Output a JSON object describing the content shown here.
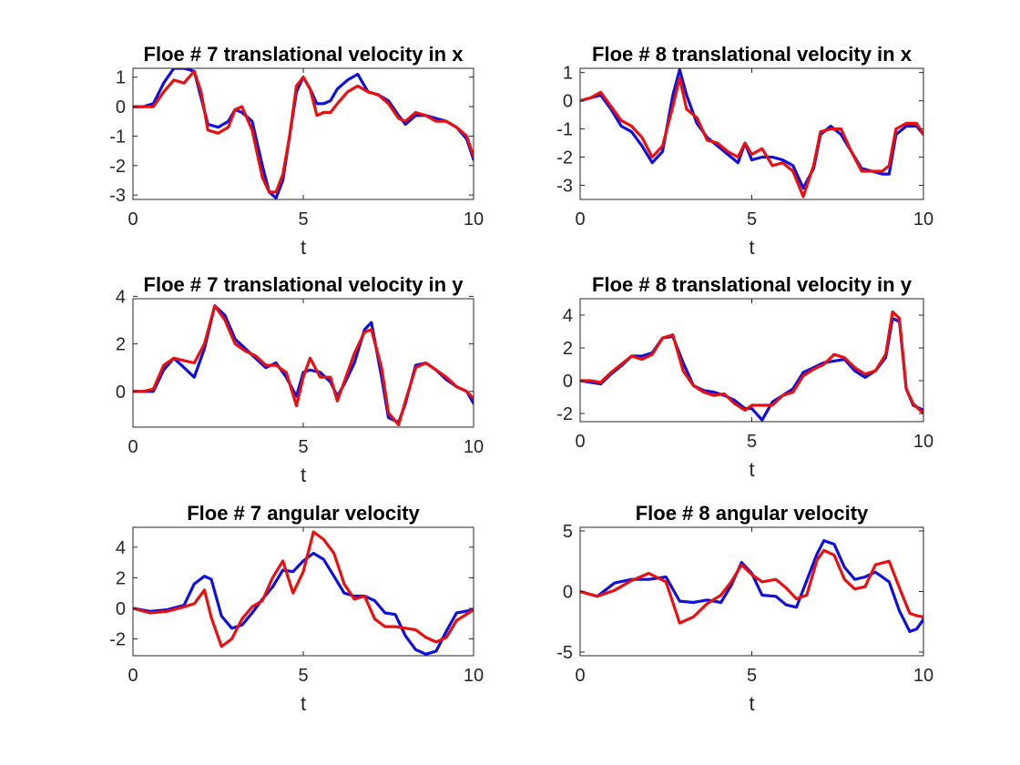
{
  "figure": {
    "colors": {
      "series_1": "#1010d8",
      "series_2": "#e81010",
      "axes": "#262626"
    }
  },
  "chart_data": [
    {
      "type": "line",
      "title": "Floe # 7 translational velocity in x",
      "xlabel": "t",
      "ylabel": "",
      "xlim": [
        0,
        10
      ],
      "ylim": [
        -3.15,
        1.3
      ],
      "xticks": [
        0,
        5,
        10
      ],
      "yticks": [
        -3,
        -2,
        -1,
        0,
        1
      ],
      "grid": false,
      "series": [
        {
          "color": "#1010d8",
          "x": [
            0,
            0.3,
            0.6,
            0.9,
            1.2,
            1.5,
            1.8,
            2.0,
            2.2,
            2.5,
            2.8,
            3.0,
            3.2,
            3.5,
            3.8,
            4.0,
            4.2,
            4.4,
            4.6,
            4.8,
            5.0,
            5.2,
            5.4,
            5.6,
            5.8,
            6.0,
            6.3,
            6.6,
            6.9,
            7.2,
            7.5,
            7.8,
            8.0,
            8.3,
            8.6,
            8.9,
            9.2,
            9.5,
            9.8,
            10.0
          ],
          "y": [
            0,
            0,
            0.1,
            0.8,
            1.3,
            1.3,
            1.2,
            0.3,
            -0.6,
            -0.7,
            -0.5,
            -0.1,
            -0.2,
            -0.5,
            -2.0,
            -2.9,
            -3.1,
            -2.5,
            -1.0,
            0.5,
            1.0,
            0.6,
            0.1,
            0.1,
            0.2,
            0.6,
            0.9,
            1.1,
            0.5,
            0.4,
            0.2,
            -0.3,
            -0.6,
            -0.3,
            -0.3,
            -0.4,
            -0.5,
            -0.7,
            -1.1,
            -1.8
          ]
        },
        {
          "color": "#e81010",
          "x": [
            0,
            0.3,
            0.6,
            0.9,
            1.2,
            1.5,
            1.8,
            2.0,
            2.2,
            2.5,
            2.8,
            3.0,
            3.2,
            3.5,
            3.8,
            4.0,
            4.2,
            4.4,
            4.6,
            4.8,
            5.0,
            5.2,
            5.4,
            5.6,
            5.8,
            6.0,
            6.3,
            6.6,
            6.9,
            7.2,
            7.5,
            7.8,
            8.0,
            8.3,
            8.6,
            8.9,
            9.2,
            9.5,
            9.8,
            10.0
          ],
          "y": [
            0,
            0,
            0,
            0.5,
            0.9,
            0.8,
            1.2,
            0.5,
            -0.8,
            -0.9,
            -0.7,
            -0.1,
            0,
            -0.8,
            -2.4,
            -2.9,
            -2.9,
            -2.3,
            -1.0,
            0.7,
            1.0,
            0.6,
            -0.3,
            -0.2,
            -0.2,
            0.1,
            0.5,
            0.7,
            0.5,
            0.4,
            0.1,
            -0.4,
            -0.5,
            -0.2,
            -0.3,
            -0.5,
            -0.5,
            -0.7,
            -1.0,
            -1.7
          ]
        }
      ]
    },
    {
      "type": "line",
      "title": "Floe # 8 translational velocity in x",
      "xlabel": "t",
      "ylabel": "",
      "xlim": [
        0,
        10
      ],
      "ylim": [
        -3.5,
        1.15
      ],
      "xticks": [
        0,
        5,
        10
      ],
      "yticks": [
        -3,
        -2,
        -1,
        0,
        1
      ],
      "grid": false,
      "series": [
        {
          "color": "#1010d8",
          "x": [
            0,
            0.3,
            0.6,
            0.9,
            1.2,
            1.5,
            1.8,
            2.1,
            2.4,
            2.7,
            2.9,
            3.1,
            3.4,
            3.7,
            4.0,
            4.3,
            4.6,
            4.8,
            5.0,
            5.3,
            5.6,
            5.9,
            6.2,
            6.5,
            6.8,
            7.0,
            7.3,
            7.6,
            7.9,
            8.2,
            8.5,
            8.8,
            9.0,
            9.2,
            9.5,
            9.8,
            10.0
          ],
          "y": [
            0,
            0.1,
            0.2,
            -0.3,
            -0.9,
            -1.1,
            -1.6,
            -2.2,
            -1.8,
            0.2,
            1.1,
            0.2,
            -0.8,
            -1.3,
            -1.6,
            -1.9,
            -2.2,
            -1.5,
            -2.1,
            -2.0,
            -2.0,
            -2.1,
            -2.3,
            -3.1,
            -2.4,
            -1.2,
            -0.9,
            -1.2,
            -1.8,
            -2.4,
            -2.5,
            -2.6,
            -2.6,
            -1.2,
            -0.9,
            -0.9,
            -1.2
          ]
        },
        {
          "color": "#e81010",
          "x": [
            0,
            0.3,
            0.6,
            0.9,
            1.2,
            1.5,
            1.8,
            2.1,
            2.4,
            2.7,
            2.9,
            3.1,
            3.4,
            3.7,
            4.0,
            4.3,
            4.6,
            4.8,
            5.0,
            5.3,
            5.6,
            5.9,
            6.2,
            6.5,
            6.8,
            7.0,
            7.3,
            7.6,
            7.9,
            8.2,
            8.5,
            8.8,
            9.0,
            9.2,
            9.5,
            9.8,
            10.0
          ],
          "y": [
            0,
            0.1,
            0.3,
            -0.2,
            -0.7,
            -0.9,
            -1.3,
            -2.0,
            -1.6,
            -0.2,
            0.8,
            -0.3,
            -0.6,
            -1.4,
            -1.5,
            -1.8,
            -2.0,
            -1.5,
            -1.9,
            -1.7,
            -2.3,
            -2.2,
            -2.5,
            -3.4,
            -2.3,
            -1.1,
            -1.0,
            -1.0,
            -1.8,
            -2.5,
            -2.5,
            -2.5,
            -2.3,
            -1.0,
            -0.8,
            -0.8,
            -1.2
          ]
        }
      ]
    },
    {
      "type": "line",
      "title": "Floe # 7 translational velocity in y",
      "xlabel": "t",
      "ylabel": "",
      "xlim": [
        0,
        10
      ],
      "ylim": [
        -1.5,
        3.9
      ],
      "xticks": [
        0,
        5,
        10
      ],
      "yticks": [
        0,
        2,
        4
      ],
      "grid": false,
      "series": [
        {
          "color": "#1010d8",
          "x": [
            0,
            0.3,
            0.6,
            0.9,
            1.2,
            1.5,
            1.8,
            2.1,
            2.4,
            2.7,
            3.0,
            3.3,
            3.6,
            3.9,
            4.2,
            4.5,
            4.8,
            5.0,
            5.2,
            5.5,
            5.8,
            6.0,
            6.2,
            6.5,
            6.8,
            7.0,
            7.3,
            7.5,
            7.8,
            8.0,
            8.3,
            8.6,
            8.9,
            9.2,
            9.5,
            9.8,
            10.0
          ],
          "y": [
            0,
            0,
            0,
            0.9,
            1.4,
            1.0,
            0.6,
            1.8,
            3.6,
            3.2,
            2.2,
            1.8,
            1.4,
            1.0,
            1.2,
            0.6,
            -0.2,
            0.8,
            0.9,
            0.8,
            0.4,
            -0.2,
            0.3,
            1.2,
            2.6,
            2.9,
            0.6,
            -1.1,
            -1.3,
            -0.5,
            1.1,
            1.2,
            0.9,
            0.5,
            0.2,
            0,
            -0.5
          ]
        },
        {
          "color": "#e81010",
          "x": [
            0,
            0.3,
            0.6,
            0.9,
            1.2,
            1.5,
            1.8,
            2.1,
            2.4,
            2.7,
            3.0,
            3.3,
            3.6,
            3.9,
            4.2,
            4.5,
            4.8,
            5.0,
            5.2,
            5.5,
            5.8,
            6.0,
            6.2,
            6.5,
            6.8,
            7.0,
            7.3,
            7.5,
            7.8,
            8.0,
            8.3,
            8.6,
            8.9,
            9.2,
            9.5,
            9.8,
            10.0
          ],
          "y": [
            0,
            0,
            0.1,
            1.1,
            1.4,
            1.3,
            1.2,
            2.0,
            3.6,
            3.0,
            2.0,
            1.7,
            1.5,
            1.1,
            1.1,
            0.8,
            -0.6,
            0.6,
            1.4,
            0.6,
            0.6,
            -0.4,
            0.4,
            1.6,
            2.5,
            2.6,
            1.0,
            -0.9,
            -1.4,
            -0.4,
            1.0,
            1.2,
            0.9,
            0.6,
            0.2,
            0,
            -0.3
          ]
        }
      ]
    },
    {
      "type": "line",
      "title": "Floe # 8 translational velocity in y",
      "xlabel": "t",
      "ylabel": "",
      "xlim": [
        0,
        10
      ],
      "ylim": [
        -2.5,
        5.0
      ],
      "xticks": [
        0,
        5,
        10
      ],
      "yticks": [
        -2,
        0,
        2,
        4
      ],
      "grid": false,
      "series": [
        {
          "color": "#1010d8",
          "x": [
            0,
            0.3,
            0.6,
            0.9,
            1.2,
            1.5,
            1.8,
            2.1,
            2.4,
            2.7,
            3.0,
            3.3,
            3.6,
            3.9,
            4.2,
            4.5,
            4.8,
            5.0,
            5.3,
            5.6,
            5.9,
            6.2,
            6.5,
            6.8,
            7.1,
            7.4,
            7.7,
            8.0,
            8.3,
            8.6,
            8.9,
            9.1,
            9.3,
            9.5,
            9.7,
            10.0
          ],
          "y": [
            0,
            -0.1,
            -0.2,
            0.4,
            0.9,
            1.5,
            1.5,
            1.7,
            2.6,
            2.7,
            1.1,
            -0.3,
            -0.6,
            -0.7,
            -0.9,
            -1.2,
            -1.7,
            -1.7,
            -2.4,
            -1.3,
            -0.9,
            -0.5,
            0.5,
            0.8,
            1.1,
            1.2,
            1.3,
            0.6,
            0.2,
            0.6,
            1.4,
            3.8,
            3.6,
            -0.5,
            -1.5,
            -1.8
          ]
        },
        {
          "color": "#e81010",
          "x": [
            0,
            0.3,
            0.6,
            0.9,
            1.2,
            1.5,
            1.8,
            2.1,
            2.4,
            2.7,
            3.0,
            3.3,
            3.6,
            3.9,
            4.2,
            4.5,
            4.8,
            5.0,
            5.3,
            5.6,
            5.9,
            6.2,
            6.5,
            6.8,
            7.1,
            7.4,
            7.7,
            8.0,
            8.3,
            8.6,
            8.9,
            9.1,
            9.3,
            9.5,
            9.7,
            10.0
          ],
          "y": [
            0,
            0,
            -0.1,
            0.5,
            1.0,
            1.5,
            1.3,
            1.6,
            2.6,
            2.8,
            0.6,
            -0.3,
            -0.7,
            -0.9,
            -0.8,
            -1.4,
            -1.8,
            -1.5,
            -1.5,
            -1.5,
            -0.9,
            -0.7,
            0.3,
            0.7,
            1.0,
            1.6,
            1.4,
            0.8,
            0.4,
            0.6,
            1.6,
            4.2,
            3.8,
            -0.5,
            -1.4,
            -2.0
          ]
        }
      ]
    },
    {
      "type": "line",
      "title": "Floe # 7 angular velocity",
      "xlabel": "t",
      "ylabel": "",
      "xlim": [
        0,
        10
      ],
      "ylim": [
        -3.1,
        5.3
      ],
      "xticks": [
        0,
        5,
        10
      ],
      "yticks": [
        -2,
        0,
        2,
        4
      ],
      "grid": false,
      "series": [
        {
          "color": "#1010d8",
          "x": [
            0,
            0.5,
            1.0,
            1.5,
            1.8,
            2.1,
            2.3,
            2.6,
            2.9,
            3.2,
            3.5,
            3.8,
            4.1,
            4.4,
            4.7,
            5.0,
            5.3,
            5.6,
            5.9,
            6.2,
            6.5,
            6.8,
            7.1,
            7.4,
            7.7,
            8.0,
            8.3,
            8.6,
            8.9,
            9.2,
            9.5,
            10.0
          ],
          "y": [
            0,
            -0.2,
            -0.1,
            0.2,
            1.6,
            2.1,
            1.9,
            -0.5,
            -1.3,
            -1.1,
            -0.3,
            0.6,
            1.4,
            2.5,
            2.4,
            3.1,
            3.6,
            3.2,
            2.1,
            1.0,
            0.8,
            0.8,
            0.5,
            -0.3,
            -0.4,
            -1.8,
            -2.7,
            -3.0,
            -2.8,
            -1.5,
            -0.3,
            -0.1
          ]
        },
        {
          "color": "#e81010",
          "x": [
            0,
            0.5,
            1.0,
            1.5,
            1.8,
            2.1,
            2.3,
            2.6,
            2.9,
            3.2,
            3.5,
            3.8,
            4.1,
            4.4,
            4.7,
            5.0,
            5.3,
            5.6,
            5.9,
            6.2,
            6.5,
            6.8,
            7.1,
            7.4,
            7.7,
            8.0,
            8.3,
            8.6,
            8.9,
            9.2,
            9.5,
            10.0
          ],
          "y": [
            0,
            -0.3,
            -0.2,
            0.1,
            0.3,
            1.2,
            -0.6,
            -2.5,
            -2.0,
            -0.7,
            0.1,
            0.5,
            2.0,
            3.1,
            1.0,
            2.4,
            5.0,
            4.5,
            3.6,
            1.6,
            0.6,
            0.8,
            -0.7,
            -1.2,
            -1.2,
            -1.3,
            -1.4,
            -1.9,
            -2.2,
            -1.9,
            -0.8,
            -0.1
          ]
        }
      ]
    },
    {
      "type": "line",
      "title": "Floe # 8 angular velocity",
      "xlabel": "t",
      "ylabel": "",
      "xlim": [
        0,
        10
      ],
      "ylim": [
        -5.3,
        5.3
      ],
      "xticks": [
        0,
        5,
        10
      ],
      "yticks": [
        -5,
        0,
        5
      ],
      "grid": false,
      "series": [
        {
          "color": "#1010d8",
          "x": [
            0,
            0.5,
            1.0,
            1.5,
            2.0,
            2.5,
            2.9,
            3.3,
            3.7,
            4.1,
            4.4,
            4.7,
            5.0,
            5.3,
            5.7,
            6.0,
            6.3,
            6.6,
            6.9,
            7.1,
            7.4,
            7.7,
            8.0,
            8.3,
            8.6,
            9.0,
            9.3,
            9.6,
            9.8,
            10.0
          ],
          "y": [
            0,
            -0.4,
            0.7,
            1.0,
            1.0,
            1.2,
            -0.8,
            -0.9,
            -0.7,
            -0.9,
            0.5,
            2.4,
            1.5,
            -0.3,
            -0.4,
            -1.1,
            -1.3,
            0.9,
            3.1,
            4.2,
            3.9,
            2.0,
            1.0,
            1.2,
            1.6,
            0.8,
            -1.6,
            -3.3,
            -3.1,
            -2.3
          ]
        },
        {
          "color": "#e81010",
          "x": [
            0,
            0.5,
            1.0,
            1.5,
            2.0,
            2.5,
            2.9,
            3.3,
            3.7,
            4.1,
            4.4,
            4.7,
            5.0,
            5.3,
            5.7,
            6.0,
            6.3,
            6.6,
            6.9,
            7.1,
            7.4,
            7.7,
            8.0,
            8.3,
            8.6,
            9.0,
            9.3,
            9.6,
            9.8,
            10.0
          ],
          "y": [
            0,
            -0.4,
            0.1,
            0.9,
            1.5,
            0.8,
            -2.6,
            -2.1,
            -1.0,
            -0.3,
            0.8,
            2.2,
            1.4,
            0.8,
            1.0,
            0.3,
            -0.6,
            -0.3,
            2.6,
            3.4,
            3.0,
            1.0,
            0.2,
            0.4,
            2.2,
            2.5,
            0.3,
            -1.8,
            -2.0,
            -2.1
          ]
        }
      ]
    }
  ]
}
